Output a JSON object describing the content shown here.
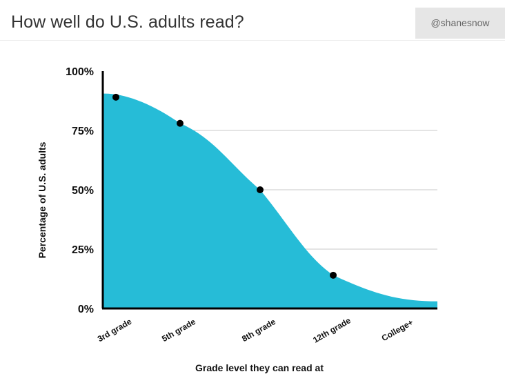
{
  "header": {
    "title": "How well do U.S. adults read?",
    "handle": "@shanesnow"
  },
  "colors": {
    "area_fill": "#26bcd7",
    "point": "#000000",
    "axis": "#000000",
    "grid": "#c8c8c8"
  },
  "chart_data": {
    "type": "area",
    "title": "How well do U.S. adults read?",
    "xlabel": "Grade level they can read at",
    "ylabel": "Percentage of U.S. adults",
    "categories": [
      "3rd grade",
      "5th grade",
      "8th grade",
      "12th grade",
      "College+"
    ],
    "points": [
      {
        "x": "3rd grade",
        "y": 89
      },
      {
        "x": "5th grade",
        "y": 78
      },
      {
        "x": "8th grade",
        "y": 50
      },
      {
        "x": "12th grade",
        "y": 14
      }
    ],
    "ylim": [
      0,
      100
    ],
    "yticks": [
      {
        "value": 0,
        "label": "0%"
      },
      {
        "value": 25,
        "label": "25%"
      },
      {
        "value": 50,
        "label": "50%"
      },
      {
        "value": 75,
        "label": "75%"
      },
      {
        "value": 100,
        "label": "100%"
      }
    ],
    "grid": true,
    "legend": "none"
  }
}
